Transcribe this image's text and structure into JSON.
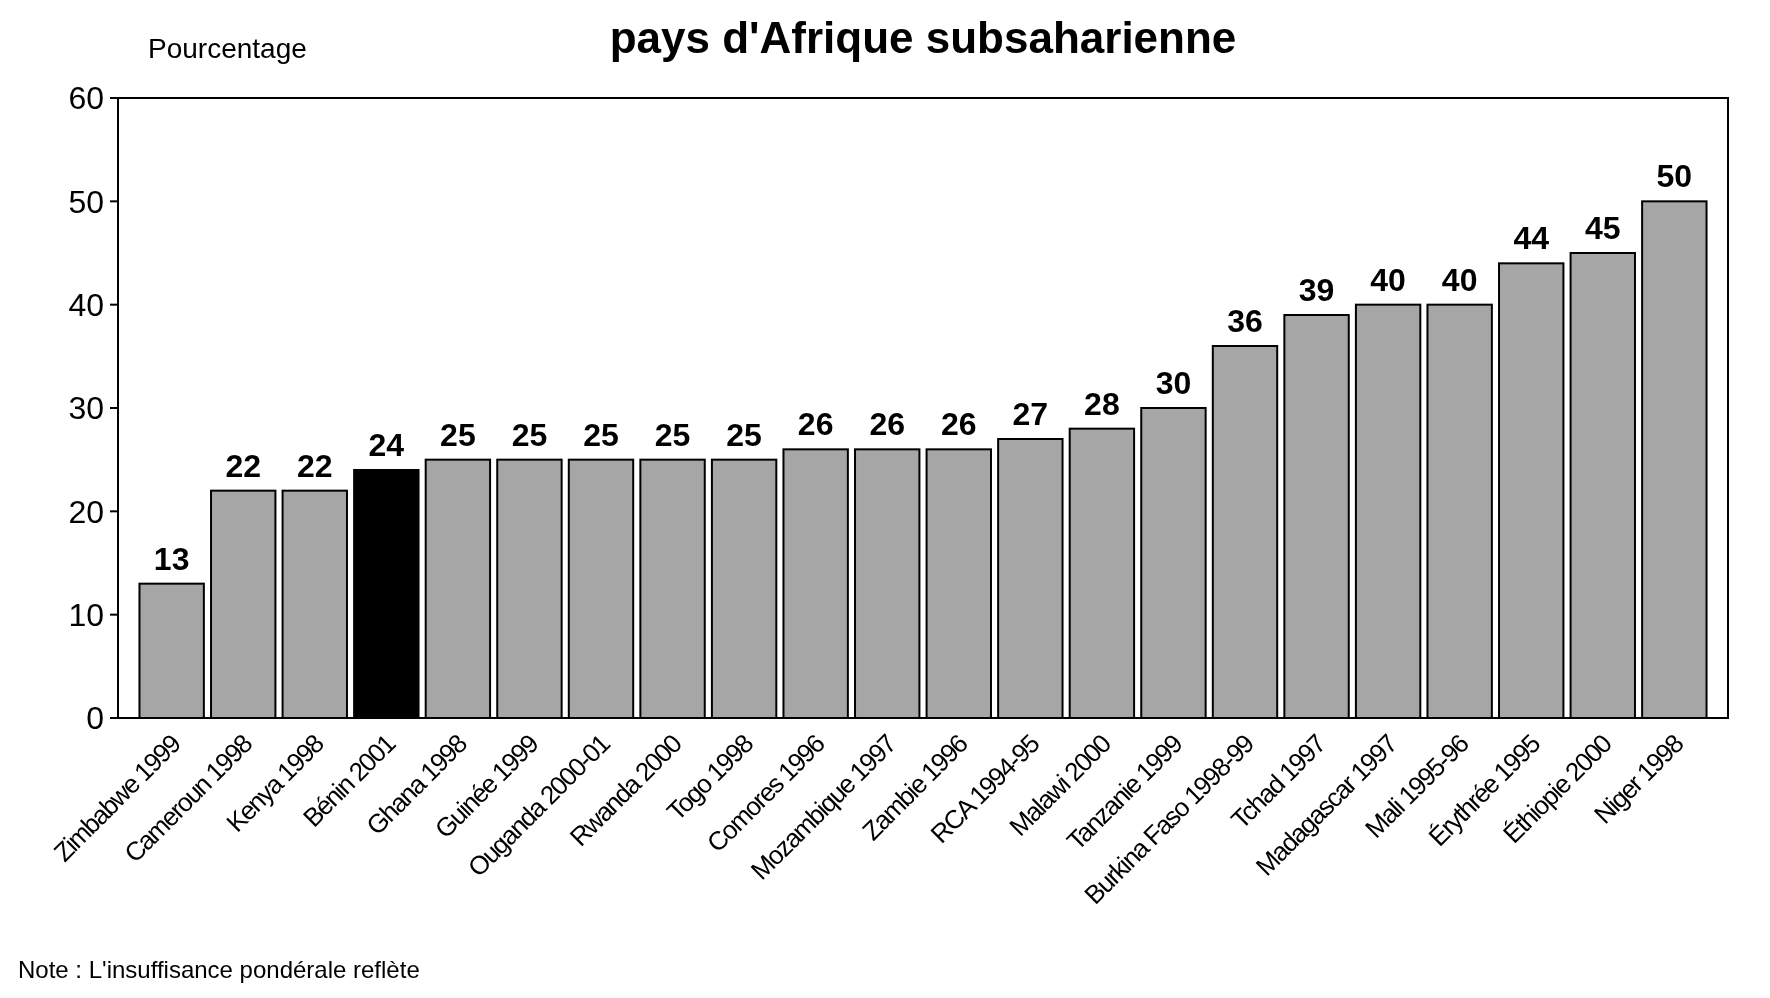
{
  "chart_data": {
    "type": "bar",
    "title": "pays d'Afrique subsaharienne",
    "ylabel": "Pourcentage",
    "categories": [
      "Zimbabwe 1999",
      "Cameroun 1998",
      "Kenya 1998",
      "Bénin 2001",
      "Ghana 1998",
      "Guinée 1999",
      "Ouganda 2000-01",
      "Rwanda 2000",
      "Togo 1998",
      "Comores 1996",
      "Mozambique 1997",
      "Zambie 1996",
      "RCA 1994-95",
      "Malawi 2000",
      "Tanzanie 1999",
      "Burkina Faso 1998-99",
      "Tchad 1997",
      "Madagascar 1997",
      "Mali 1995-96",
      "Érythrée 1995",
      "Éthiopie 2000",
      "Niger 1998"
    ],
    "values": [
      13,
      22,
      22,
      24,
      25,
      25,
      25,
      25,
      25,
      26,
      26,
      26,
      27,
      28,
      30,
      36,
      39,
      40,
      40,
      44,
      45,
      50
    ],
    "colors": [
      "#a6a6a6",
      "#a6a6a6",
      "#a6a6a6",
      "#000000",
      "#a6a6a6",
      "#a6a6a6",
      "#a6a6a6",
      "#a6a6a6",
      "#a6a6a6",
      "#a6a6a6",
      "#a6a6a6",
      "#a6a6a6",
      "#a6a6a6",
      "#a6a6a6",
      "#a6a6a6",
      "#a6a6a6",
      "#a6a6a6",
      "#a6a6a6",
      "#a6a6a6",
      "#a6a6a6",
      "#a6a6a6",
      "#a6a6a6"
    ],
    "ylim": [
      0,
      60
    ],
    "yticks": [
      0,
      10,
      20,
      30,
      40,
      50,
      60
    ],
    "data_labels": true,
    "annotations": [
      "Note : L'insuffisance pondérale reflète"
    ]
  }
}
